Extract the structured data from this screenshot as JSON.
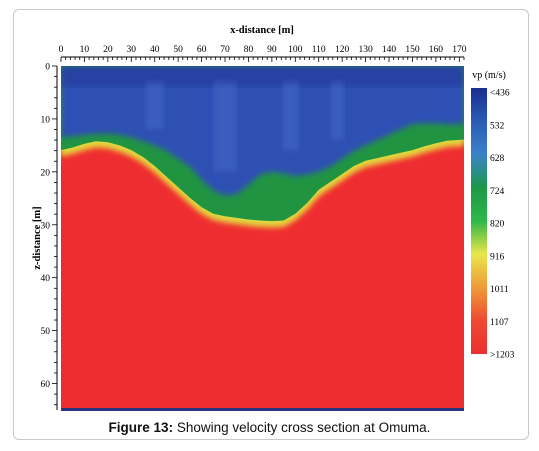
{
  "caption": {
    "label": "Figure 13:",
    "text": "Showing velocity cross section at Omuma."
  },
  "chart_data": {
    "type": "heatmap",
    "xlabel": "x-distance [m]",
    "ylabel": "z-distance [m]",
    "xlim": [
      0,
      172
    ],
    "ylim": [
      0,
      65
    ],
    "x_ticks": [
      "0",
      "10",
      "20",
      "30",
      "40",
      "50",
      "60",
      "70",
      "80",
      "90",
      "100",
      "110",
      "120",
      "130",
      "140",
      "150",
      "160",
      "170"
    ],
    "y_ticks": [
      "0",
      "10",
      "20",
      "30",
      "40",
      "50",
      "60"
    ],
    "colorbar": {
      "title": "vp (m/s)",
      "labels": [
        "<436",
        "532",
        "628",
        "724",
        "820",
        "916",
        "1011",
        "1107",
        ">1203"
      ],
      "colors": [
        "#1c2d8e",
        "#2c5bb3",
        "#3a82c9",
        "#1d9848",
        "#30b848",
        "#e8e64a",
        "#ef9a3a",
        "#ee4a32",
        "#ec2f2f"
      ]
    },
    "zones": {
      "low_velocity_color": "#2f4fb4",
      "transition_color": "#219442",
      "high_velocity_color": "#ee2d30"
    },
    "contours": {
      "x": [
        0,
        5,
        10,
        15,
        20,
        25,
        30,
        35,
        40,
        45,
        50,
        55,
        60,
        65,
        70,
        75,
        80,
        85,
        90,
        95,
        100,
        105,
        110,
        115,
        120,
        125,
        130,
        135,
        140,
        145,
        150,
        155,
        160,
        165,
        172
      ],
      "top_of_high_velocity_depth_m": [
        17.5,
        17.0,
        16.3,
        15.8,
        16.0,
        16.6,
        17.5,
        18.8,
        20.5,
        22.5,
        24.5,
        26.5,
        28.3,
        29.5,
        30.0,
        30.3,
        30.6,
        30.8,
        30.9,
        30.8,
        29.5,
        27.5,
        25.0,
        23.5,
        22.0,
        20.5,
        19.5,
        19.0,
        18.5,
        18.0,
        17.5,
        16.8,
        16.2,
        15.7,
        15.5
      ],
      "bottom_of_low_velocity_depth_m": [
        13.5,
        13.3,
        13.0,
        12.8,
        12.8,
        13.0,
        13.5,
        14.2,
        15.0,
        16.0,
        17.5,
        19.0,
        21.5,
        23.5,
        24.5,
        24.2,
        22.5,
        20.5,
        20.0,
        20.3,
        20.8,
        20.5,
        20.0,
        19.0,
        17.5,
        16.0,
        15.0,
        14.0,
        13.0,
        12.0,
        11.0,
        10.8,
        10.8,
        11.0,
        11.0
      ]
    }
  }
}
